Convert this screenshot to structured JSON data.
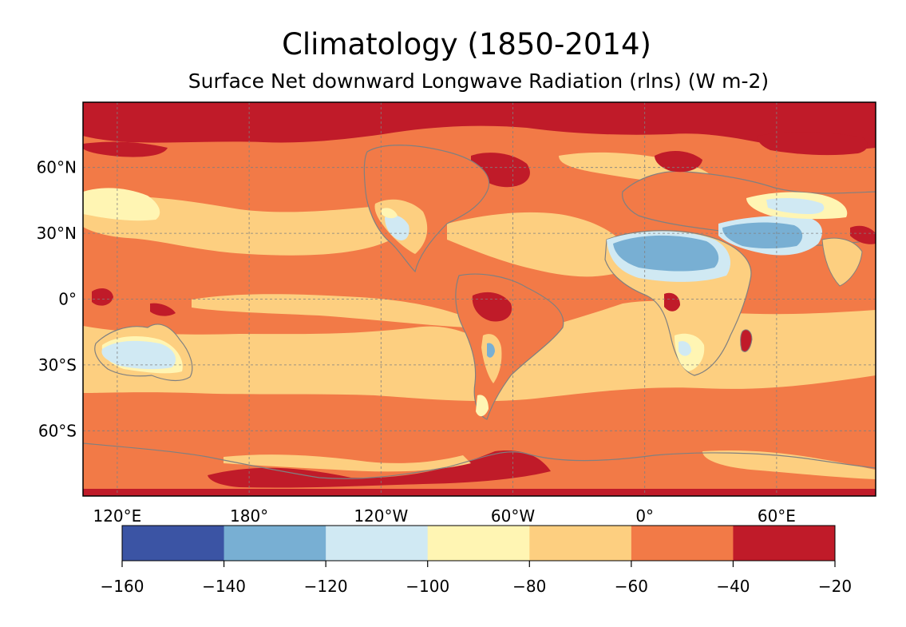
{
  "figure": {
    "title": "Climatology (1850-2014)",
    "subtitle": "Surface Net downward Longwave Radiation (rlns) (W m-2)"
  },
  "map": {
    "projection": "plate-carree",
    "central_longitude": 180,
    "lat_ticks": [
      "60°N",
      "30°N",
      "0°",
      "30°S",
      "60°S"
    ],
    "lon_ticks": [
      "120°E",
      "180°",
      "120°W",
      "60°W",
      "0°",
      "60°E"
    ],
    "gridlines": true,
    "coastlines_color": "#808080"
  },
  "colorbar": {
    "levels": [
      -160,
      -140,
      -120,
      -100,
      -80,
      -60,
      -40,
      -20
    ],
    "tick_labels": [
      "−160",
      "−140",
      "−120",
      "−100",
      "−80",
      "−60",
      "−40",
      "−20"
    ],
    "colors": [
      "#3b54a4",
      "#78afd3",
      "#d0e9f3",
      "#fff5b3",
      "#fdcf80",
      "#f27a47",
      "#c01b29"
    ]
  }
}
